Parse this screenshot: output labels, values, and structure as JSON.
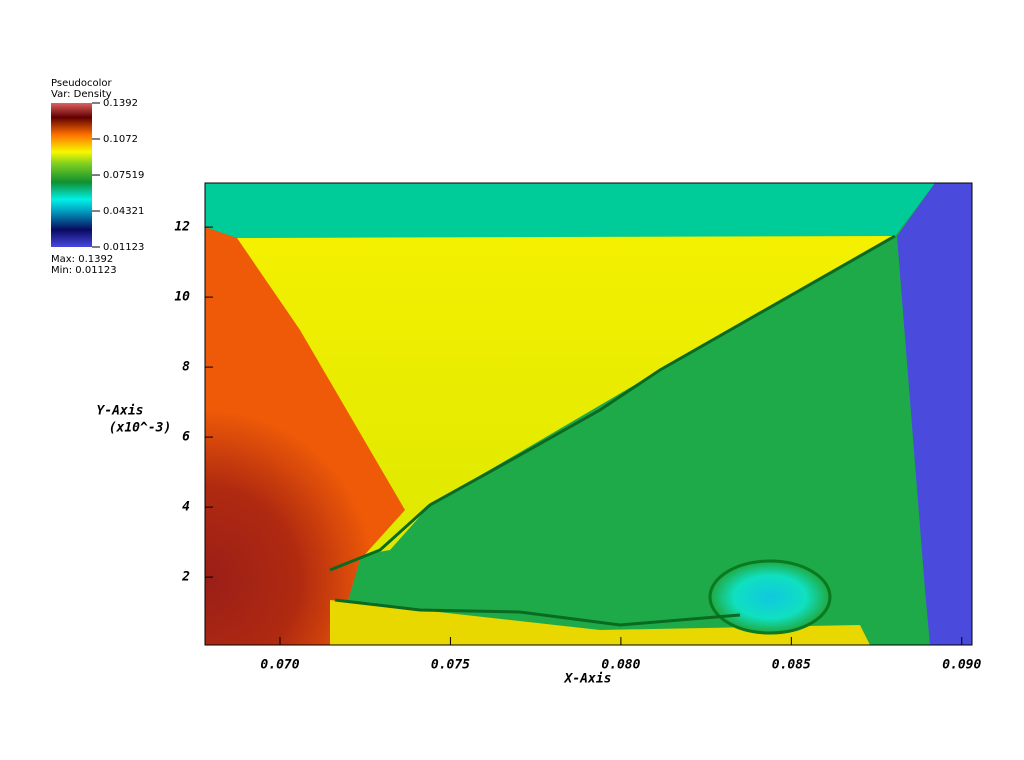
{
  "chart_data": {
    "type": "pseudocolor",
    "legend": {
      "title": "Pseudocolor",
      "variable": "Var: Density",
      "range": [
        0.01123,
        0.1392
      ],
      "ticks": [
        0.1392,
        0.1072,
        0.07519,
        0.04321,
        0.01123
      ],
      "max_label": "Max: 0.1392",
      "min_label": "Min: 0.01123"
    },
    "xlabel": "X-Axis",
    "ylabel": "Y-Axis",
    "yunit": "(x10^-3)",
    "xlim": [
      0.0678,
      0.0903
    ],
    "xticks": [
      {
        "value": 0.07,
        "label": "0.070"
      },
      {
        "value": 0.075,
        "label": "0.075"
      },
      {
        "value": 0.08,
        "label": "0.080"
      },
      {
        "value": 0.085,
        "label": "0.085"
      },
      {
        "value": 0.09,
        "label": "0.090"
      }
    ],
    "ylim": [
      0.06,
      13.26
    ],
    "yticks": [
      2,
      4,
      6,
      8,
      10,
      12
    ]
  }
}
